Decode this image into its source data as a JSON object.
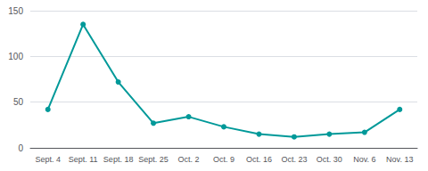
{
  "chart_data": {
    "type": "line",
    "categories": [
      "Sept. 4",
      "Sept. 11",
      "Sept. 18",
      "Sept. 25",
      "Oct. 2",
      "Oct. 9",
      "Oct. 16",
      "Oct. 23",
      "Oct. 30",
      "Nov. 6",
      "Nov. 13"
    ],
    "values": [
      42,
      135,
      72,
      27,
      34,
      23,
      15,
      12,
      15,
      17,
      42
    ],
    "color": "#009999",
    "marker": "circle",
    "ylim": [
      0,
      150
    ],
    "yticks": [
      0,
      50,
      100,
      150
    ],
    "grid": true
  }
}
